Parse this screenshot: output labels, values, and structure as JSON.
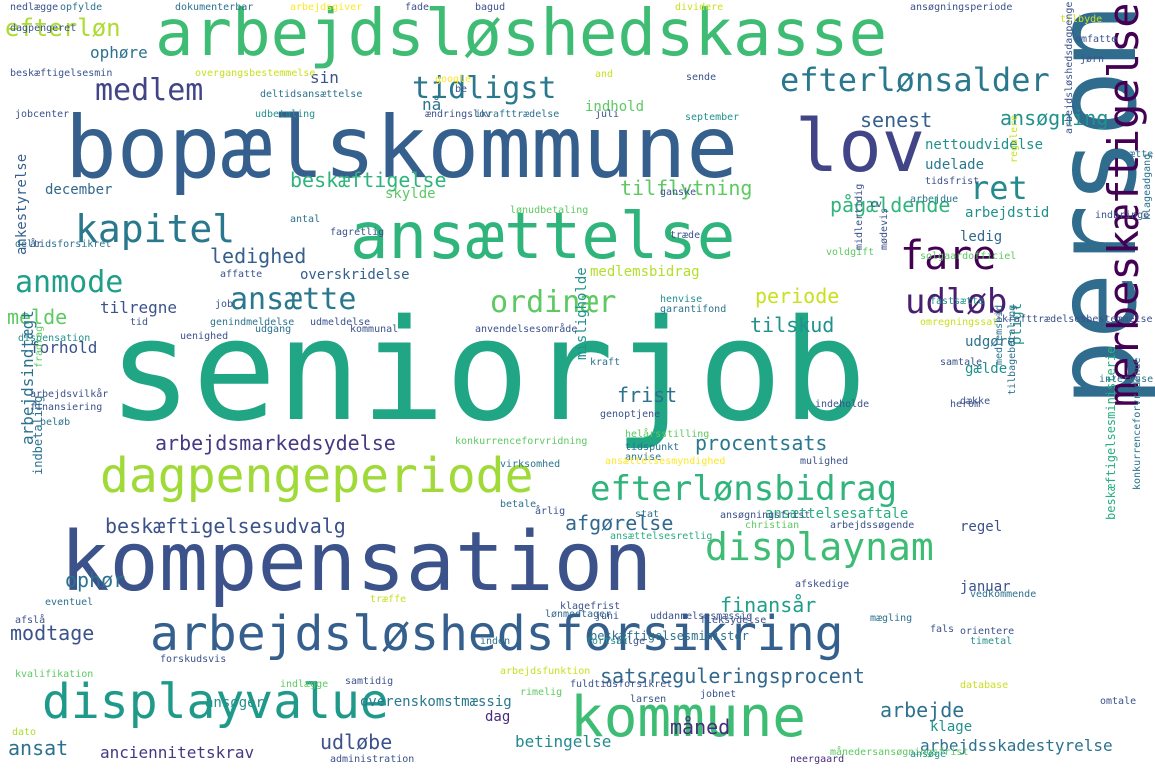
{
  "palette": {
    "dark_purple": "#440154",
    "indigo": "#3b528b",
    "blue": "#2c728e",
    "teal": "#21918c",
    "green": "#28ae80",
    "light_green": "#5ec962",
    "lime": "#addc30",
    "yellow": "#fde725"
  },
  "words": [
    {
      "text": "seniorjob",
      "color": "#21a685",
      "vertical": false
    },
    {
      "text": "bopælskommune",
      "color": "#355f8d",
      "vertical": false
    },
    {
      "text": "arbejdsløshedskasse",
      "color": "#3fbc73",
      "vertical": false
    },
    {
      "text": "person",
      "color": "#2f6c8e",
      "vertical": true
    },
    {
      "text": "kompensation",
      "color": "#3b528b",
      "vertical": false
    },
    {
      "text": "ansættelse",
      "color": "#2fb47c",
      "vertical": false
    },
    {
      "text": "lov",
      "color": "#414487",
      "vertical": false
    },
    {
      "text": "kommune",
      "color": "#3dbc74",
      "vertical": false
    },
    {
      "text": "arbejdsløshedsforsikring",
      "color": "#355f8d",
      "vertical": false
    },
    {
      "text": "dagpengeperiode",
      "color": "#a0da39",
      "vertical": false
    },
    {
      "text": "displayvalue",
      "color": "#1f9a8a",
      "vertical": false
    },
    {
      "text": "displaynam",
      "color": "#3fbc73",
      "vertical": false
    },
    {
      "text": "merbeskæftigelse",
      "color": "#440154",
      "vertical": true
    },
    {
      "text": "efterlønsbidrag",
      "color": "#2fb47c",
      "vertical": false
    },
    {
      "text": "efterlønsalder",
      "color": "#2a788e",
      "vertical": false
    },
    {
      "text": "tidligst",
      "color": "#2a788e",
      "vertical": false
    },
    {
      "text": "medlem",
      "color": "#414487",
      "vertical": false
    },
    {
      "text": "kapitel",
      "color": "#2a788e",
      "vertical": false
    },
    {
      "text": "fare",
      "color": "#440154",
      "vertical": false
    },
    {
      "text": "udløb",
      "color": "#481f70",
      "vertical": false
    },
    {
      "text": "ret",
      "color": "#238a8d",
      "vertical": false
    },
    {
      "text": "ordinær",
      "color": "#5ec962",
      "vertical": false
    },
    {
      "text": "ansætte",
      "color": "#2a788e",
      "vertical": false
    },
    {
      "text": "anmode",
      "color": "#1f9e89",
      "vertical": false
    },
    {
      "text": "efterløn",
      "color": "#addc30",
      "vertical": false
    },
    {
      "text": "ansøgning",
      "color": "#21918c",
      "vertical": false
    },
    {
      "text": "senest",
      "color": "#355f8d",
      "vertical": false
    },
    {
      "text": "beskæftigelse",
      "color": "#2fb47c",
      "vertical": false
    },
    {
      "text": "tilflytning",
      "color": "#5ec962",
      "vertical": false
    },
    {
      "text": "pågældende",
      "color": "#2fb47c",
      "vertical": false
    },
    {
      "text": "ledighed",
      "color": "#355f8d",
      "vertical": false
    },
    {
      "text": "periode",
      "color": "#c8e020",
      "vertical": false
    },
    {
      "text": "tilskud",
      "color": "#21918c",
      "vertical": false
    },
    {
      "text": "frist",
      "color": "#2c728e",
      "vertical": false
    },
    {
      "text": "procentsats",
      "color": "#2a788e",
      "vertical": false
    },
    {
      "text": "arbejdsmarkedsydelse",
      "color": "#443983",
      "vertical": false
    },
    {
      "text": "beskæftigelsesudvalg",
      "color": "#3b528b",
      "vertical": false
    },
    {
      "text": "afgørelse",
      "color": "#31688e",
      "vertical": false
    },
    {
      "text": "ophør",
      "color": "#2c728e",
      "vertical": false
    },
    {
      "text": "finansår",
      "color": "#1f9e89",
      "vertical": false
    },
    {
      "text": "modtage",
      "color": "#3b528b",
      "vertical": false
    },
    {
      "text": "satsreguleringsprocent",
      "color": "#31688e",
      "vertical": false
    },
    {
      "text": "måned",
      "color": "#472d7b",
      "vertical": false
    },
    {
      "text": "arbejde",
      "color": "#2c728e",
      "vertical": false
    },
    {
      "text": "ansat",
      "color": "#2c728e",
      "vertical": false
    },
    {
      "text": "udløbe",
      "color": "#3b528b",
      "vertical": false
    },
    {
      "text": "anciennitetskrav",
      "color": "#443983",
      "vertical": false
    },
    {
      "text": "betingelse",
      "color": "#238a8d",
      "vertical": false
    },
    {
      "text": "arbejdsskadestyrelse",
      "color": "#2c728e",
      "vertical": false
    },
    {
      "text": "medlemsbidrag",
      "color": "#b5de2b",
      "vertical": false
    },
    {
      "text": "overskridelse",
      "color": "#355f8d",
      "vertical": false
    },
    {
      "text": "melde",
      "color": "#5ec962",
      "vertical": false
    },
    {
      "text": "tilregne",
      "color": "#3b528b",
      "vertical": false
    },
    {
      "text": "forhold",
      "color": "#3b528b",
      "vertical": false
    },
    {
      "text": "ankestyrelse",
      "color": "#355f8d",
      "vertical": true
    },
    {
      "text": "arbejdsindtægt",
      "color": "#2c728e",
      "vertical": true
    },
    {
      "text": "ophøre",
      "color": "#2c728e",
      "vertical": false
    },
    {
      "text": "sin",
      "color": "#3b528b",
      "vertical": false
    },
    {
      "text": "nå",
      "color": "#2c728e",
      "vertical": false
    },
    {
      "text": "indhold",
      "color": "#5ec962",
      "vertical": false
    },
    {
      "text": "december",
      "color": "#31688e",
      "vertical": false
    },
    {
      "text": "skylde",
      "color": "#5ec962",
      "vertical": false
    },
    {
      "text": "nettoudvidelse",
      "color": "#21918c",
      "vertical": false
    },
    {
      "text": "udelade",
      "color": "#2a788e",
      "vertical": false
    },
    {
      "text": "arbejdstid",
      "color": "#21918c",
      "vertical": false
    },
    {
      "text": "ledig",
      "color": "#31688e",
      "vertical": false
    },
    {
      "text": "regel",
      "color": "#3b528b",
      "vertical": false
    },
    {
      "text": "januar",
      "color": "#3b528b",
      "vertical": false
    },
    {
      "text": "ansøger",
      "color": "#21918c",
      "vertical": false
    },
    {
      "text": "dag",
      "color": "#472d7b",
      "vertical": false
    },
    {
      "text": "klage",
      "color": "#21918c",
      "vertical": false
    },
    {
      "text": "pligt",
      "color": "#21918c",
      "vertical": true
    },
    {
      "text": "udgøre",
      "color": "#2c728e",
      "vertical": false
    },
    {
      "text": "gælde",
      "color": "#21918c",
      "vertical": false
    },
    {
      "text": "misligholde",
      "color": "#21918c",
      "vertical": true
    },
    {
      "text": "genoptjene",
      "color": "#3b528b",
      "vertical": false
    },
    {
      "text": "helårsstilling",
      "color": "#5ec962",
      "vertical": false
    },
    {
      "text": "tidspunkt",
      "color": "#2c728e",
      "vertical": false
    },
    {
      "text": "ansættelsesaftale",
      "color": "#28ae80",
      "vertical": false
    },
    {
      "text": "overenskomstmæssig",
      "color": "#2a788e",
      "vertical": false
    },
    {
      "text": "rimelig",
      "color": "#5ec962",
      "vertical": false
    },
    {
      "text": "beskæftigelsesminister",
      "color": "#2c728e",
      "vertical": false
    },
    {
      "text": "beskæftigelsesministerie",
      "color": "#28ae80",
      "vertical": true
    },
    {
      "text": "konkurrenceforvridende",
      "color": "#2c728e",
      "vertical": true
    },
    {
      "text": "indbetaling",
      "color": "#2c728e",
      "vertical": true
    },
    {
      "text": "kvalifikation",
      "color": "#5ec962",
      "vertical": false
    },
    {
      "text": "dato",
      "color": "#addc30",
      "vertical": false
    },
    {
      "text": "administration",
      "color": "#3b528b",
      "vertical": false
    },
    {
      "text": "neergaard",
      "color": "#472d7b",
      "vertical": false
    },
    {
      "text": "månedersansøgningsfrist",
      "color": "#5ec962",
      "vertical": false
    },
    {
      "text": "lønmodtager",
      "color": "#31688e",
      "vertical": false
    },
    {
      "text": "inden",
      "color": "#2c728e",
      "vertical": false
    },
    {
      "text": "følge",
      "color": "#3b528b",
      "vertical": false
    },
    {
      "text": "fortsat",
      "color": "#21918c",
      "vertical": false
    },
    {
      "text": "fals",
      "color": "#3b528b",
      "vertical": false
    },
    {
      "text": "mægling",
      "color": "#2c728e",
      "vertical": false
    },
    {
      "text": "orientere",
      "color": "#3b528b",
      "vertical": false
    },
    {
      "text": "timetal",
      "color": "#21918c",
      "vertical": false
    },
    {
      "text": "fleksydelse",
      "color": "#3b528b",
      "vertical": false
    },
    {
      "text": "vedkommende",
      "color": "#2c728e",
      "vertical": false
    },
    {
      "text": "betale",
      "color": "#2c728e",
      "vertical": false
    },
    {
      "text": "årlig",
      "color": "#3b528b",
      "vertical": false
    },
    {
      "text": "stat",
      "color": "#2c728e",
      "vertical": false
    },
    {
      "text": "christian",
      "color": "#5ec962",
      "vertical": false
    },
    {
      "text": "arbejdssøgende",
      "color": "#3b528b",
      "vertical": false
    },
    {
      "text": "ansættelsesretlig",
      "color": "#28ae80",
      "vertical": false
    },
    {
      "text": "dispensation",
      "color": "#21918c",
      "vertical": false
    },
    {
      "text": "udgang",
      "color": "#2c728e",
      "vertical": false
    },
    {
      "text": "kommunal",
      "color": "#3b528b",
      "vertical": false
    },
    {
      "text": "anvendelsesområde",
      "color": "#3b528b",
      "vertical": false
    },
    {
      "text": "genindmeldelse",
      "color": "#2c728e",
      "vertical": false
    },
    {
      "text": "udmeldelse",
      "color": "#3b528b",
      "vertical": false
    },
    {
      "text": "henvise",
      "color": "#21918c",
      "vertical": false
    },
    {
      "text": "garantifond",
      "color": "#2c728e",
      "vertical": false
    },
    {
      "text": "omregningssat",
      "color": "#c8e020",
      "vertical": false
    },
    {
      "text": "fastsætte",
      "color": "#21918c",
      "vertical": false
    },
    {
      "text": "solgaardofficiel",
      "color": "#5ec962",
      "vertical": false
    },
    {
      "text": "tilbyde",
      "color": "#c8e020",
      "vertical": false
    },
    {
      "text": "omfatte",
      "color": "#3b528b",
      "vertical": false
    },
    {
      "text": "jørn",
      "color": "#3b528b",
      "vertical": false
    },
    {
      "text": "ansøgningsperiode",
      "color": "#3b528b",
      "vertical": false
    },
    {
      "text": "dokumenterbar",
      "color": "#2c728e",
      "vertical": false
    },
    {
      "text": "nedlægge",
      "color": "#3b528b",
      "vertical": false
    },
    {
      "text": "opfylde",
      "color": "#2c728e",
      "vertical": false
    },
    {
      "text": "arbejdsgiver",
      "color": "#fde725",
      "vertical": false
    },
    {
      "text": "bagud",
      "color": "#3b528b",
      "vertical": false
    },
    {
      "text": "dividere",
      "color": "#c8e020",
      "vertical": false
    },
    {
      "text": "dagpengeret",
      "color": "#3b528b",
      "vertical": false
    },
    {
      "text": "beskæftigelsesmin",
      "color": "#3b528b",
      "vertical": false
    },
    {
      "text": "overgangsbestemmelse",
      "color": "#c8e020",
      "vertical": false
    },
    {
      "text": "deltidsansættelse",
      "color": "#2c728e",
      "vertical": false
    },
    {
      "text": "jobcenter",
      "color": "#3b528b",
      "vertical": false
    },
    {
      "text": "udbetaling",
      "color": "#21918c",
      "vertical": false
    },
    {
      "text": "ændringslov",
      "color": "#3b528b",
      "vertical": false
    },
    {
      "text": "ikrafttrædelse",
      "color": "#2c728e",
      "vertical": false
    },
    {
      "text": "juli",
      "color": "#3b528b",
      "vertical": false
    },
    {
      "text": "september",
      "color": "#21918c",
      "vertical": false
    },
    {
      "text": "sende",
      "color": "#3b528b",
      "vertical": false
    },
    {
      "text": "be",
      "color": "#3b528b",
      "vertical": false
    },
    {
      "text": "google",
      "color": "#fde725",
      "vertical": false
    },
    {
      "text": "and",
      "color": "#c8e020",
      "vertical": false
    },
    {
      "text": "fade",
      "color": "#3b528b",
      "vertical": false
    },
    {
      "text": "arbejdsløshedsdagpenge",
      "color": "#3b528b",
      "vertical": true
    },
    {
      "text": "deltidsforsikret",
      "color": "#2c728e",
      "vertical": false
    },
    {
      "text": "arbejdsvilkår",
      "color": "#3b528b",
      "vertical": false
    },
    {
      "text": "fradrag",
      "color": "#5ec962",
      "vertical": true
    },
    {
      "text": "beløb",
      "color": "#2c728e",
      "vertical": false
    },
    {
      "text": "finansiering",
      "color": "#3b528b",
      "vertical": false
    },
    {
      "text": "uenighed",
      "color": "#3b528b",
      "vertical": false
    },
    {
      "text": "år",
      "color": "#3b528b",
      "vertical": false
    },
    {
      "text": "antal",
      "color": "#2c728e",
      "vertical": false
    },
    {
      "text": "affatte",
      "color": "#3b528b",
      "vertical": false
    },
    {
      "text": "job",
      "color": "#3b528b",
      "vertical": false
    },
    {
      "text": "tid",
      "color": "#3b528b",
      "vertical": false
    },
    {
      "text": "cv",
      "color": "#3b528b",
      "vertical": false
    },
    {
      "text": "indbringe",
      "color": "#3b528b",
      "vertical": false
    },
    {
      "text": "træde",
      "color": "#3b528b",
      "vertical": false
    },
    {
      "text": "lønudbetaling",
      "color": "#5ec962",
      "vertical": false
    },
    {
      "text": "fagretlig",
      "color": "#3b528b",
      "vertical": false
    },
    {
      "text": "ganske",
      "color": "#3b528b",
      "vertical": false
    },
    {
      "text": "arbejdue",
      "color": "#2c728e",
      "vertical": false
    },
    {
      "text": "tidsfrist",
      "color": "#3b528b",
      "vertical": false
    },
    {
      "text": "regulere",
      "color": "#c8e020",
      "vertical": true
    },
    {
      "text": "klageadgang",
      "color": "#2c728e",
      "vertical": true
    },
    {
      "text": "nedsætte",
      "color": "#2c728e",
      "vertical": false
    },
    {
      "text": "midlertidig",
      "color": "#3b528b",
      "vertical": true
    },
    {
      "text": "mødevis",
      "color": "#3b528b",
      "vertical": true
    },
    {
      "text": "voldgift",
      "color": "#5ec962",
      "vertical": false
    },
    {
      "text": "kraft",
      "color": "#2c728e",
      "vertical": false
    },
    {
      "text": "samtale",
      "color": "#3b528b",
      "vertical": false
    },
    {
      "text": "herom",
      "color": "#3b528b",
      "vertical": false
    },
    {
      "text": "indeholde",
      "color": "#3b528b",
      "vertical": false
    },
    {
      "text": "dække",
      "color": "#3b528b",
      "vertical": false
    },
    {
      "text": "tilbagebetaling",
      "color": "#2c728e",
      "vertical": true
    },
    {
      "text": "medlemsbid",
      "color": "#2c728e",
      "vertical": true
    },
    {
      "text": "interesse",
      "color": "#2c728e",
      "vertical": false
    },
    {
      "text": "ikrafttrædelsesbestemmelse",
      "color": "#3b528b",
      "vertical": false
    },
    {
      "text": "anvise",
      "color": "#2c728e",
      "vertical": false
    },
    {
      "text": "mulighed",
      "color": "#3b528b",
      "vertical": false
    },
    {
      "text": "ansættelsesmyndighed",
      "color": "#fde725",
      "vertical": false
    },
    {
      "text": "virksomhed",
      "color": "#2c728e",
      "vertical": false
    },
    {
      "text": "konkurrenceforvridning",
      "color": "#5ec962",
      "vertical": false
    },
    {
      "text": "ansøgningsfrist",
      "color": "#3b528b",
      "vertical": false
    },
    {
      "text": "afskedige",
      "color": "#3b528b",
      "vertical": false
    },
    {
      "text": "træffe",
      "color": "#c8e020",
      "vertical": false
    },
    {
      "text": "klagefrist",
      "color": "#3b528b",
      "vertical": false
    },
    {
      "text": "uddannelsesmæssig",
      "color": "#3b528b",
      "vertical": false
    },
    {
      "text": "juni",
      "color": "#3b528b",
      "vertical": false
    },
    {
      "text": "eventuel",
      "color": "#2c728e",
      "vertical": false
    },
    {
      "text": "afslå",
      "color": "#3b528b",
      "vertical": false
    },
    {
      "text": "forskudsvis",
      "color": "#3b528b",
      "vertical": false
    },
    {
      "text": "indlægge",
      "color": "#5ec962",
      "vertical": false
    },
    {
      "text": "samtidig",
      "color": "#3b528b",
      "vertical": false
    },
    {
      "text": "arbejdsfunktion",
      "color": "#c8e020",
      "vertical": false
    },
    {
      "text": "fuldtidsforsikret",
      "color": "#3b528b",
      "vertical": false
    },
    {
      "text": "larsen",
      "color": "#3b528b",
      "vertical": false
    },
    {
      "text": "jobnet",
      "color": "#3b528b",
      "vertical": false
    },
    {
      "text": "database",
      "color": "#c8e020",
      "vertical": false
    },
    {
      "text": "omtale",
      "color": "#3b528b",
      "vertical": false
    },
    {
      "text": "ansøge",
      "color": "#21918c",
      "vertical": false
    }
  ]
}
